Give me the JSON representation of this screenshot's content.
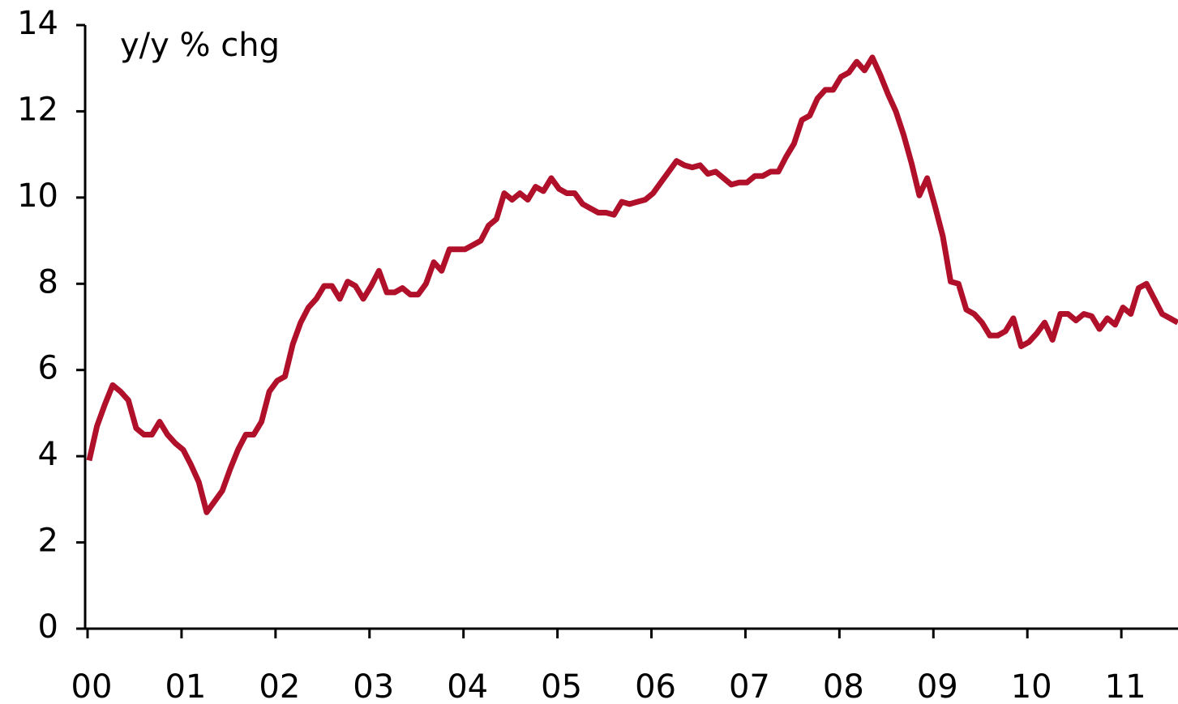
{
  "chart_data": {
    "type": "line",
    "title": "y/y % chg",
    "categories": [
      "00",
      null,
      null,
      null,
      null,
      null,
      null,
      null,
      null,
      null,
      null,
      null,
      "01",
      null,
      null,
      null,
      null,
      null,
      null,
      null,
      null,
      null,
      null,
      null,
      "02",
      null,
      null,
      null,
      null,
      null,
      null,
      null,
      null,
      null,
      null,
      null,
      "03",
      null,
      null,
      null,
      null,
      null,
      null,
      null,
      null,
      null,
      null,
      null,
      "04",
      null,
      null,
      null,
      null,
      null,
      null,
      null,
      null,
      null,
      null,
      null,
      "05",
      null,
      null,
      null,
      null,
      null,
      null,
      null,
      null,
      null,
      null,
      null,
      "06",
      null,
      null,
      null,
      null,
      null,
      null,
      null,
      null,
      null,
      null,
      null,
      "07",
      null,
      null,
      null,
      null,
      null,
      null,
      null,
      null,
      null,
      null,
      null,
      "08",
      null,
      null,
      null,
      null,
      null,
      null,
      null,
      null,
      null,
      null,
      null,
      "09",
      null,
      null,
      null,
      null,
      null,
      null,
      null,
      null,
      null,
      null,
      null,
      "10",
      null,
      null,
      null,
      null,
      null,
      null,
      null,
      null,
      null,
      null,
      null,
      "11",
      null,
      null,
      null,
      null,
      null,
      null,
      null
    ],
    "values": [
      3.9,
      4.7,
      5.2,
      5.65,
      5.5,
      5.3,
      4.65,
      4.5,
      4.5,
      4.8,
      4.5,
      4.3,
      4.15,
      3.8,
      3.4,
      2.7,
      2.95,
      3.2,
      3.7,
      4.15,
      4.5,
      4.5,
      4.8,
      5.5,
      5.75,
      5.85,
      6.6,
      7.1,
      7.45,
      7.65,
      7.95,
      7.95,
      7.65,
      8.05,
      7.95,
      7.65,
      7.95,
      8.3,
      7.8,
      7.8,
      7.9,
      7.75,
      7.75,
      8.0,
      8.5,
      8.3,
      8.8,
      8.8,
      8.8,
      8.9,
      9.0,
      9.35,
      9.5,
      10.1,
      9.95,
      10.1,
      9.95,
      10.25,
      10.15,
      10.45,
      10.2,
      10.1,
      10.1,
      9.85,
      9.75,
      9.65,
      9.65,
      9.6,
      9.9,
      9.85,
      9.9,
      9.95,
      10.1,
      10.35,
      10.6,
      10.85,
      10.75,
      10.7,
      10.75,
      10.55,
      10.6,
      10.45,
      10.3,
      10.35,
      10.35,
      10.5,
      10.5,
      10.6,
      10.6,
      10.95,
      11.25,
      11.8,
      11.9,
      12.3,
      12.5,
      12.5,
      12.8,
      12.9,
      13.15,
      12.95,
      13.25,
      12.85,
      12.4,
      12.0,
      11.45,
      10.8,
      10.05,
      10.45,
      9.8,
      9.1,
      8.05,
      8.0,
      7.4,
      7.3,
      7.1,
      6.8,
      6.8,
      6.9,
      7.2,
      6.55,
      6.65,
      6.85,
      7.1,
      6.7,
      7.3,
      7.3,
      7.15,
      7.3,
      7.25,
      6.95,
      7.2,
      7.05,
      7.45,
      7.3,
      7.9,
      8.0,
      7.65,
      7.3,
      7.2,
      7.1
    ],
    "color": "#b0102a",
    "ylim": [
      0,
      14
    ],
    "yticks": [
      0,
      2,
      4,
      6,
      8,
      10,
      12,
      14
    ]
  }
}
